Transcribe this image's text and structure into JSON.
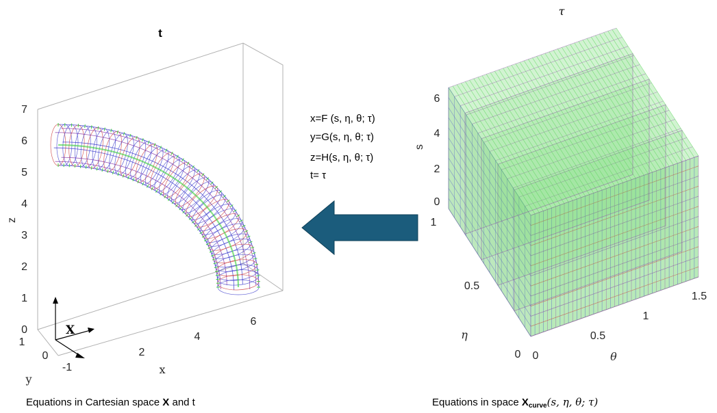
{
  "left_plot": {
    "title": "t",
    "z_label": "z",
    "x_label": "x",
    "y_label": "y",
    "z_ticks": [
      "0",
      "1",
      "2",
      "3",
      "4",
      "5",
      "6",
      "7"
    ],
    "x_ticks": [
      "2",
      "4",
      "6"
    ],
    "y_ticks": [
      "1",
      "0",
      "-1"
    ],
    "frame_label": "X",
    "caption_prefix": "Equations in Cartesian space ",
    "caption_bold": "X",
    "caption_suffix": " and t"
  },
  "right_plot": {
    "title": "τ",
    "s_label": "s",
    "eta_label": "η",
    "theta_label": "θ",
    "s_ticks": [
      "0",
      "2",
      "4",
      "6"
    ],
    "eta_ticks": [
      "1",
      "0.5",
      "0"
    ],
    "theta_ticks": [
      "0",
      "0.5",
      "1",
      "1.5"
    ],
    "caption_prefix": "Equations in  space ",
    "caption_bold": "X",
    "caption_sub": "curve",
    "caption_suffix": "(s, η, θ; τ)"
  },
  "equations": {
    "line1": "x=F (s, η, θ; τ)",
    "line2": "y=G(s, η, θ; τ)",
    "line3": "z=H(s, η, θ; τ)",
    "line4": "t= τ"
  },
  "arrow": {
    "color": "#1b5c7c",
    "direction": "left"
  },
  "colors": {
    "mesh_blue": "#3a3acc",
    "mesh_purple": "#8a3aa8",
    "mesh_green": "#3ad03a",
    "mesh_red": "#cc3a3a"
  }
}
